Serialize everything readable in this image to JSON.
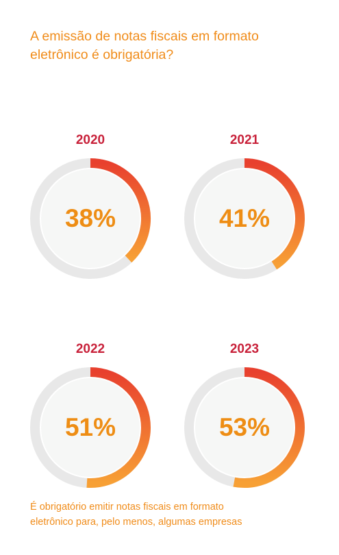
{
  "title_lines": [
    "A emissão de notas fiscais em formato",
    "eletrônico é obrigatória?"
  ],
  "caption_lines": [
    "É obrigatório emitir notas fiscais em formato",
    "eletrônico para, pelo menos, algumas empresas"
  ],
  "colors": {
    "accent_orange": "#f08c1a",
    "year_red": "#c8213a",
    "gradient_start": "#e8402e",
    "gradient_end": "#f7a035",
    "track": "#e8e8e8",
    "inner_fill": "#f6f7f6"
  },
  "chart_data": [
    {
      "type": "pie",
      "year": "2020",
      "label": "38%",
      "value": 38
    },
    {
      "type": "pie",
      "year": "2021",
      "label": "41%",
      "value": 41
    },
    {
      "type": "pie",
      "year": "2022",
      "label": "51%",
      "value": 51
    },
    {
      "type": "pie",
      "year": "2023",
      "label": "53%",
      "value": 53
    }
  ]
}
